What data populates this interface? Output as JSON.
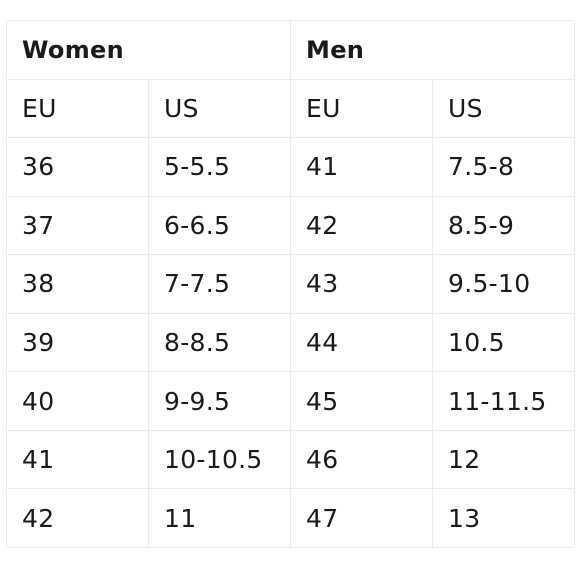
{
  "table": {
    "groups": [
      {
        "label": "Women"
      },
      {
        "label": "Men"
      }
    ],
    "columns": [
      "EU",
      "US",
      "EU",
      "US"
    ],
    "rows": [
      [
        "36",
        "5-5.5",
        "41",
        "7.5-8"
      ],
      [
        "37",
        "6-6.5",
        "42",
        "8.5-9"
      ],
      [
        "38",
        "7-7.5",
        "43",
        "9.5-10"
      ],
      [
        "39",
        "8-8.5",
        "44",
        "10.5"
      ],
      [
        "40",
        "9-9.5",
        "45",
        "11-11.5"
      ],
      [
        "41",
        "10-10.5",
        "46",
        "12"
      ],
      [
        "42",
        "11",
        "47",
        "13"
      ]
    ]
  }
}
